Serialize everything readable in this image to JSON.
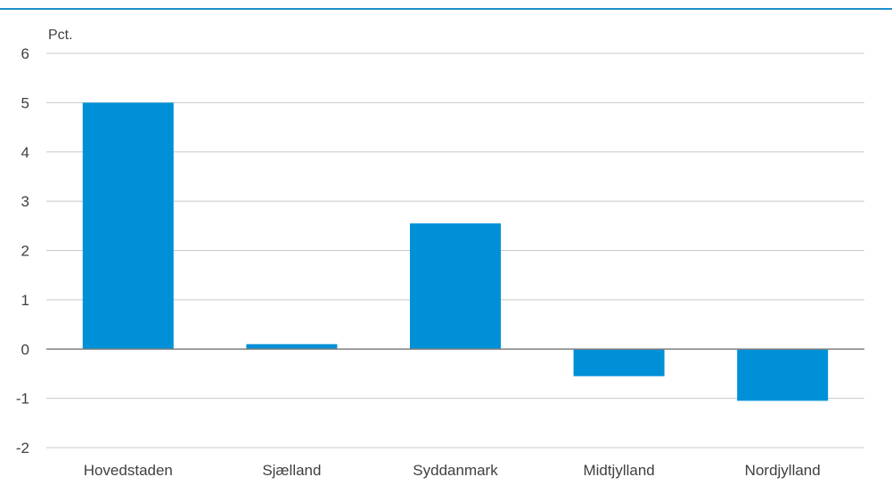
{
  "colors": {
    "bar": "#0090d8",
    "top_rule": "#1f8fc9"
  },
  "chart_data": {
    "type": "bar",
    "title": "",
    "xlabel": "",
    "ylabel": "Pct.",
    "ylim": [
      -2,
      6
    ],
    "yticks": [
      6,
      5,
      4,
      3,
      2,
      1,
      0,
      -1,
      -2
    ],
    "grid": true,
    "categories": [
      "Hovedstaden",
      "Sjælland",
      "Syddanmark",
      "Midtjylland",
      "Nordjylland"
    ],
    "series": [
      {
        "values": [
          5.0,
          0.1,
          2.55,
          -0.55,
          -1.05
        ]
      }
    ]
  }
}
